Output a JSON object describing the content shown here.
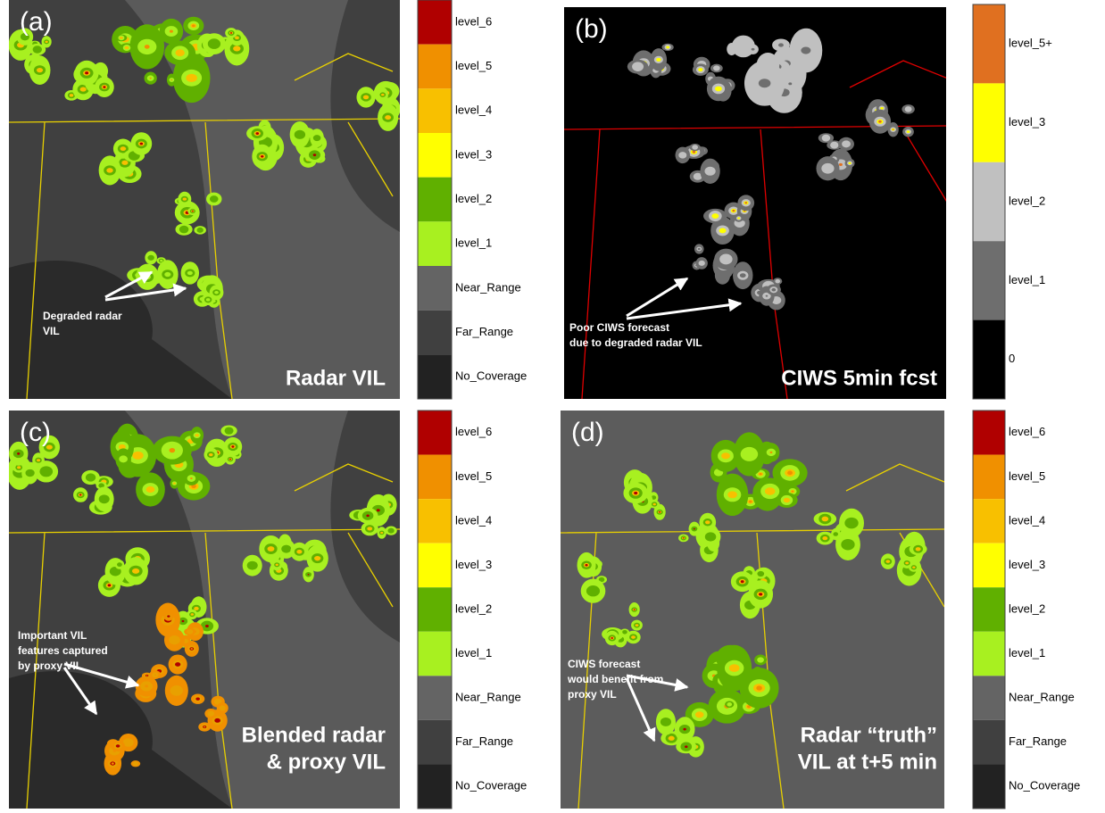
{
  "panels": [
    {
      "label": "(a)",
      "title": [
        "Radar VIL"
      ],
      "annotation": [
        "Degraded radar",
        "VIL"
      ],
      "legend": [
        {
          "label": "level_6",
          "color": "#b00000"
        },
        {
          "label": "level_5",
          "color": "#f09000"
        },
        {
          "label": "level_4",
          "color": "#f8c000"
        },
        {
          "label": "level_3",
          "color": "#ffff00"
        },
        {
          "label": "level_2",
          "color": "#60b000"
        },
        {
          "label": "level_1",
          "color": "#a8f020"
        },
        {
          "label": "Near_Range",
          "color": "#646464"
        },
        {
          "label": "Far_Range",
          "color": "#404040"
        },
        {
          "label": "No_Coverage",
          "color": "#222222"
        }
      ]
    },
    {
      "label": "(b)",
      "title": [
        "CIWS 5min fcst"
      ],
      "annotation": [
        "Poor CIWS forecast",
        "due to degraded radar VIL"
      ],
      "legend": [
        {
          "label": "level_5+",
          "color": "#e07020"
        },
        {
          "label": "level_3",
          "color": "#ffff00"
        },
        {
          "label": "level_2",
          "color": "#c0c0c0"
        },
        {
          "label": "level_1",
          "color": "#6e6e6e"
        },
        {
          "label": "0",
          "color": "#000000"
        }
      ]
    },
    {
      "label": "(c)",
      "title": [
        "Blended radar",
        "& proxy VIL"
      ],
      "annotation": [
        "Important VIL",
        "features captured",
        "by proxy VIL"
      ],
      "legend": [
        {
          "label": "level_6",
          "color": "#b00000"
        },
        {
          "label": "level_5",
          "color": "#f09000"
        },
        {
          "label": "level_4",
          "color": "#f8c000"
        },
        {
          "label": "level_3",
          "color": "#ffff00"
        },
        {
          "label": "level_2",
          "color": "#60b000"
        },
        {
          "label": "level_1",
          "color": "#a8f020"
        },
        {
          "label": "Near_Range",
          "color": "#646464"
        },
        {
          "label": "Far_Range",
          "color": "#404040"
        },
        {
          "label": "No_Coverage",
          "color": "#222222"
        }
      ]
    },
    {
      "label": "(d)",
      "title": [
        "Radar “truth”",
        "VIL at t+5 min"
      ],
      "annotation": [
        "CIWS forecast",
        "would benefit from",
        "proxy VIL"
      ],
      "legend": [
        {
          "label": "level_6",
          "color": "#b00000"
        },
        {
          "label": "level_5",
          "color": "#f09000"
        },
        {
          "label": "level_4",
          "color": "#f8c000"
        },
        {
          "label": "level_3",
          "color": "#ffff00"
        },
        {
          "label": "level_2",
          "color": "#60b000"
        },
        {
          "label": "level_1",
          "color": "#a8f020"
        },
        {
          "label": "Near_Range",
          "color": "#646464"
        },
        {
          "label": "Far_Range",
          "color": "#404040"
        },
        {
          "label": "No_Coverage",
          "color": "#222222"
        }
      ]
    }
  ]
}
